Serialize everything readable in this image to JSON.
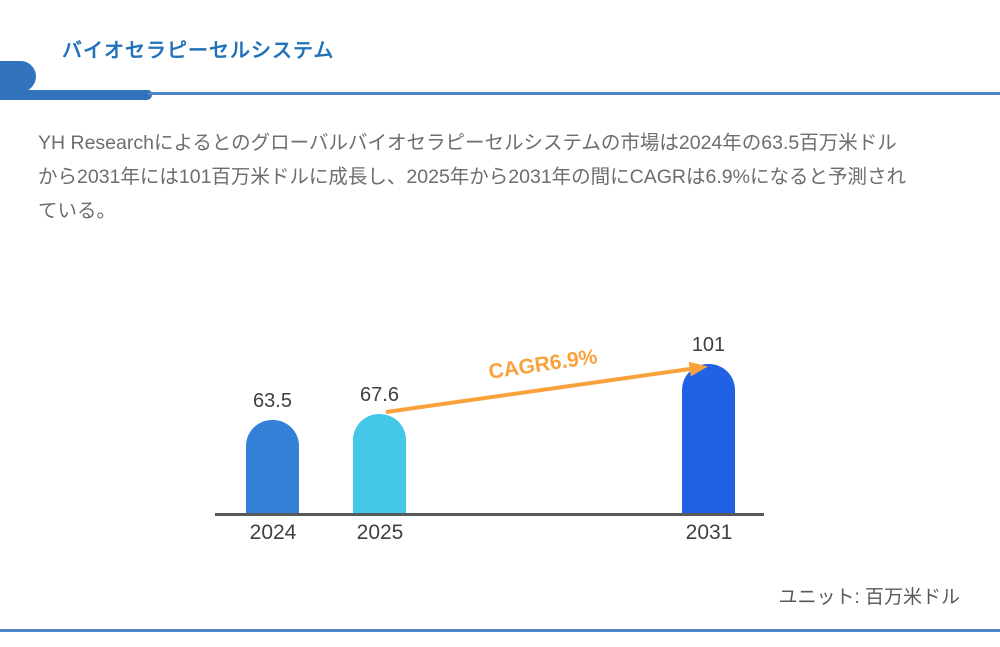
{
  "header": {
    "title": "バイオセラピーセルシステム"
  },
  "intro": {
    "lines": [
      "YH Researchによるとのグローバルバイオセラピーセルシステムの市場は2024年の63.5百万米ドル",
      "から2031年には101百万米ドルに成長し、2025年から2031年の間にCAGRは6.9%になると予測され",
      "ている。"
    ]
  },
  "chart_data": {
    "type": "bar",
    "categories": [
      "2024",
      "2025",
      "2031"
    ],
    "values": [
      63.5,
      67.6,
      101
    ],
    "value_labels": [
      "63.5",
      "67.6",
      "101"
    ],
    "annotation": "CAGR6.9%",
    "unit_note": "ユニット: 百万米ドル",
    "ylim": [
      0,
      101
    ],
    "grid": false,
    "legend": false,
    "bar_colors": [
      "#3480d6",
      "#45c8e8",
      "#2061e5"
    ],
    "axis_color": "#58595b",
    "arrow_color": "#f9a23c"
  },
  "colors": {
    "title_blue": "#2272b9",
    "accent_blue": "#3273bd",
    "divider_blue": "#4e86c8",
    "body_text": "#6d6d6d",
    "label_text": "#404040"
  }
}
